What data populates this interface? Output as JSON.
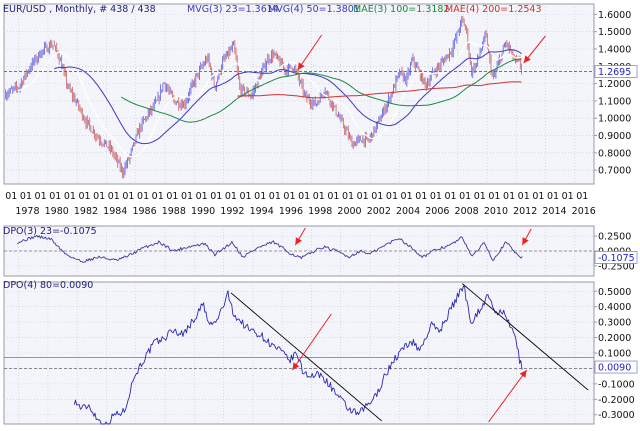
{
  "colors": {
    "background": "#ffffff",
    "plot_bg": "#f4f4fb",
    "frame": "#9a9aa8",
    "grid": "#c8c8d4",
    "bar_up": "#6c6ce0",
    "bar_down": "#d07070",
    "mvg23": "#ffffff",
    "mvg50": "#3a3ac0",
    "mae100": "#1a8a3a",
    "mae200": "#d03030",
    "dpo23": "#3a3aa0",
    "dpo80": "#2a2ab0",
    "trendline": "#000000",
    "arrow": "#ee2222",
    "hline_blue": "#5555cc",
    "hline_red": "#ee4444",
    "label_box_bg": "#ffffff",
    "label_box_text": "#2222cc"
  },
  "header": {
    "symbol": "EUR/USD , Monthly, # 438 / 438",
    "mvg23": "MVG(3) 23=1.3614",
    "mvg50": "MVG(4) 50=1.3801",
    "mae100": "MAE(3) 100=1.3182",
    "mae200": "MAE(4) 200=1.2543"
  },
  "chart_data": [
    {
      "type": "candlestick",
      "title": "EUR/USD , Monthly, # 438 / 438",
      "x_range": [
        1977.0,
        2017.3
      ],
      "ylim": [
        0.62,
        1.66
      ],
      "y_ticks": [
        0.7,
        0.8,
        0.9,
        1.0,
        1.1,
        1.2,
        1.3,
        1.4,
        1.5,
        1.6
      ],
      "y_tick_labels": [
        "0.7000",
        "0.8000",
        "0.9000",
        "1.0000",
        "1.1000",
        "1.2000",
        "1.3000",
        "1.4000",
        "1.5000",
        "1.6000"
      ],
      "last_price_label": "1.2695",
      "x_tick_row1": [
        "01",
        "01",
        "01",
        "01",
        "01",
        "01",
        "01",
        "01",
        "01",
        "01",
        "01",
        "01",
        "01",
        "01",
        "01",
        "01",
        "01",
        "01",
        "01",
        "01",
        "01",
        "01",
        "01",
        "01",
        "01",
        "01",
        "01",
        "01",
        "01",
        "01",
        "01",
        "01",
        "01",
        "01",
        "01",
        "01",
        "01",
        "01",
        "01",
        "01"
      ],
      "x_tick_years": [
        "1978",
        "1980",
        "1982",
        "1984",
        "1986",
        "1988",
        "1990",
        "1992",
        "1994",
        "1996",
        "1998",
        "2000",
        "2002",
        "2004",
        "2006",
        "2008",
        "2010",
        "2012",
        "2014",
        "2016"
      ],
      "price_anchors": [
        [
          1977.1,
          1.14
        ],
        [
          1978.0,
          1.18
        ],
        [
          1978.8,
          1.3
        ],
        [
          1979.5,
          1.38
        ],
        [
          1980.3,
          1.43
        ],
        [
          1980.7,
          1.37
        ],
        [
          1981.4,
          1.17
        ],
        [
          1981.9,
          1.1
        ],
        [
          1982.6,
          0.98
        ],
        [
          1983.4,
          0.89
        ],
        [
          1984.3,
          0.82
        ],
        [
          1985.1,
          0.69
        ],
        [
          1985.5,
          0.76
        ],
        [
          1986.3,
          0.95
        ],
        [
          1986.9,
          1.03
        ],
        [
          1987.5,
          1.1
        ],
        [
          1987.9,
          1.21
        ],
        [
          1988.6,
          1.1
        ],
        [
          1989.3,
          1.08
        ],
        [
          1990.2,
          1.25
        ],
        [
          1990.9,
          1.35
        ],
        [
          1991.4,
          1.18
        ],
        [
          1991.9,
          1.32
        ],
        [
          1992.7,
          1.42
        ],
        [
          1993.1,
          1.17
        ],
        [
          1993.9,
          1.13
        ],
        [
          1995.0,
          1.34
        ],
        [
          1995.4,
          1.37
        ],
        [
          1996.2,
          1.28
        ],
        [
          1996.8,
          1.3
        ],
        [
          1997.6,
          1.12
        ],
        [
          1998.3,
          1.08
        ],
        [
          1998.9,
          1.17
        ],
        [
          1999.6,
          1.05
        ],
        [
          2000.4,
          0.92
        ],
        [
          2000.8,
          0.85
        ],
        [
          2001.4,
          0.88
        ],
        [
          2001.9,
          0.87
        ],
        [
          2002.6,
          0.98
        ],
        [
          2003.4,
          1.13
        ],
        [
          2004.0,
          1.26
        ],
        [
          2004.5,
          1.22
        ],
        [
          2004.9,
          1.34
        ],
        [
          2005.8,
          1.19
        ],
        [
          2006.3,
          1.26
        ],
        [
          2006.9,
          1.32
        ],
        [
          2007.6,
          1.4
        ],
        [
          2008.3,
          1.57
        ],
        [
          2008.6,
          1.5
        ],
        [
          2008.9,
          1.27
        ],
        [
          2009.2,
          1.3
        ],
        [
          2009.9,
          1.48
        ],
        [
          2010.4,
          1.22
        ],
        [
          2010.7,
          1.3
        ],
        [
          2011.3,
          1.44
        ],
        [
          2011.9,
          1.33
        ],
        [
          2012.2,
          1.32
        ],
        [
          2012.4,
          1.27
        ]
      ],
      "series": [
        {
          "name": "MVG(3) 23",
          "last": 1.3614
        },
        {
          "name": "MVG(4) 50",
          "last": 1.3801
        },
        {
          "name": "MAE(3) 100",
          "last": 1.3182
        },
        {
          "name": "MAE(4) 200",
          "last": 1.2543
        }
      ],
      "annotations": [
        "red arrow pointing to 1996 swing high",
        "red arrow pointing to 2012 price area"
      ],
      "reference_line": 1.2695,
      "grid": true
    },
    {
      "type": "line",
      "title": "DPO(3) 23=-0.1075",
      "x_range": [
        1977.0,
        2017.3
      ],
      "ylim": [
        -0.42,
        0.42
      ],
      "y_ticks": [
        0.25,
        0.0,
        -0.25
      ],
      "y_tick_labels": [
        "0.2500",
        "0.0000",
        "-0.2500"
      ],
      "last_value_label": "-0.1075",
      "anchors": [
        [
          1978.0,
          0.15
        ],
        [
          1979.2,
          0.25
        ],
        [
          1980.2,
          0.2
        ],
        [
          1981.2,
          -0.05
        ],
        [
          1982.3,
          -0.18
        ],
        [
          1983.5,
          -0.1
        ],
        [
          1984.7,
          -0.16
        ],
        [
          1985.5,
          -0.08
        ],
        [
          1986.5,
          0.05
        ],
        [
          1987.6,
          0.15
        ],
        [
          1988.6,
          0.0
        ],
        [
          1989.4,
          0.06
        ],
        [
          1990.7,
          0.12
        ],
        [
          1991.4,
          -0.06
        ],
        [
          1992.6,
          0.15
        ],
        [
          1993.3,
          -0.1
        ],
        [
          1994.3,
          0.05
        ],
        [
          1995.4,
          0.15
        ],
        [
          1996.5,
          -0.03
        ],
        [
          1997.3,
          -0.12
        ],
        [
          1998.2,
          0.0
        ],
        [
          1998.8,
          0.07
        ],
        [
          1999.7,
          0.0
        ],
        [
          2000.6,
          -0.1
        ],
        [
          2001.3,
          0.0
        ],
        [
          2002.0,
          -0.05
        ],
        [
          2003.2,
          0.12
        ],
        [
          2004.0,
          0.22
        ],
        [
          2004.6,
          0.1
        ],
        [
          2005.6,
          -0.1
        ],
        [
          2006.5,
          0.02
        ],
        [
          2007.5,
          0.1
        ],
        [
          2008.3,
          0.23
        ],
        [
          2009.0,
          -0.1
        ],
        [
          2009.8,
          0.15
        ],
        [
          2010.4,
          -0.15
        ],
        [
          2011.3,
          0.15
        ],
        [
          2011.9,
          -0.02
        ],
        [
          2012.4,
          -0.11
        ]
      ],
      "annotations": [
        "red arrow pointing to 1996 low",
        "red arrow pointing to 2012 value"
      ],
      "reference_line": 0.0,
      "grid": true
    },
    {
      "type": "line",
      "title": "DPO(4) 80=0.0090",
      "x_range": [
        1977.0,
        2017.3
      ],
      "ylim": [
        -0.36,
        0.56
      ],
      "y_ticks": [
        0.5,
        0.4,
        0.3,
        0.2,
        0.1,
        0.0,
        -0.1,
        -0.2,
        -0.3
      ],
      "y_tick_labels": [
        "0.5000",
        "0.4000",
        "0.3000",
        "0.2000",
        "0.1000",
        "0.0000",
        "-0.1000",
        "-0.2000",
        "-0.3000"
      ],
      "last_value_label": "0.0090",
      "anchors": [
        [
          1981.8,
          -0.21
        ],
        [
          1982.3,
          -0.26
        ],
        [
          1982.8,
          -0.24
        ],
        [
          1983.4,
          -0.33
        ],
        [
          1984.0,
          -0.37
        ],
        [
          1984.5,
          -0.3
        ],
        [
          1985.2,
          -0.28
        ],
        [
          1985.9,
          -0.05
        ],
        [
          1986.5,
          0.05
        ],
        [
          1987.3,
          0.17
        ],
        [
          1987.9,
          0.19
        ],
        [
          1988.5,
          0.25
        ],
        [
          1989.2,
          0.22
        ],
        [
          1990.0,
          0.32
        ],
        [
          1990.6,
          0.42
        ],
        [
          1991.0,
          0.28
        ],
        [
          1991.5,
          0.3
        ],
        [
          1992.3,
          0.48
        ],
        [
          1992.7,
          0.35
        ],
        [
          1993.2,
          0.3
        ],
        [
          1993.8,
          0.25
        ],
        [
          1994.5,
          0.22
        ],
        [
          1995.3,
          0.15
        ],
        [
          1995.8,
          0.12
        ],
        [
          1996.5,
          0.05
        ],
        [
          1997.0,
          0.1
        ],
        [
          1997.4,
          -0.02
        ],
        [
          1998.0,
          -0.05
        ],
        [
          1998.6,
          -0.04
        ],
        [
          1999.2,
          -0.1
        ],
        [
          1999.8,
          -0.18
        ],
        [
          2000.5,
          -0.26
        ],
        [
          2001.2,
          -0.3
        ],
        [
          2001.8,
          -0.24
        ],
        [
          2002.4,
          -0.18
        ],
        [
          2003.0,
          -0.05
        ],
        [
          2003.6,
          0.05
        ],
        [
          2004.2,
          0.12
        ],
        [
          2004.8,
          0.18
        ],
        [
          2005.4,
          0.12
        ],
        [
          2006.2,
          0.28
        ],
        [
          2006.8,
          0.25
        ],
        [
          2007.6,
          0.4
        ],
        [
          2008.4,
          0.54
        ],
        [
          2008.9,
          0.3
        ],
        [
          2009.5,
          0.38
        ],
        [
          2010.1,
          0.48
        ],
        [
          2010.5,
          0.35
        ],
        [
          2011.0,
          0.38
        ],
        [
          2011.4,
          0.3
        ],
        [
          2011.9,
          0.22
        ],
        [
          2012.2,
          0.06
        ],
        [
          2012.4,
          0.009
        ]
      ],
      "trendlines": [
        {
          "from": [
            1992.5,
            0.49
          ],
          "to": [
            2002.8,
            -0.34
          ]
        },
        {
          "from": [
            2008.3,
            0.55
          ],
          "to": [
            2016.9,
            -0.14
          ]
        }
      ],
      "annotations": [
        "red arrow pointing to 1996 trendline cross",
        "red arrow pointing to 2012 value"
      ],
      "reference_line": 0.07,
      "grid": true
    }
  ]
}
